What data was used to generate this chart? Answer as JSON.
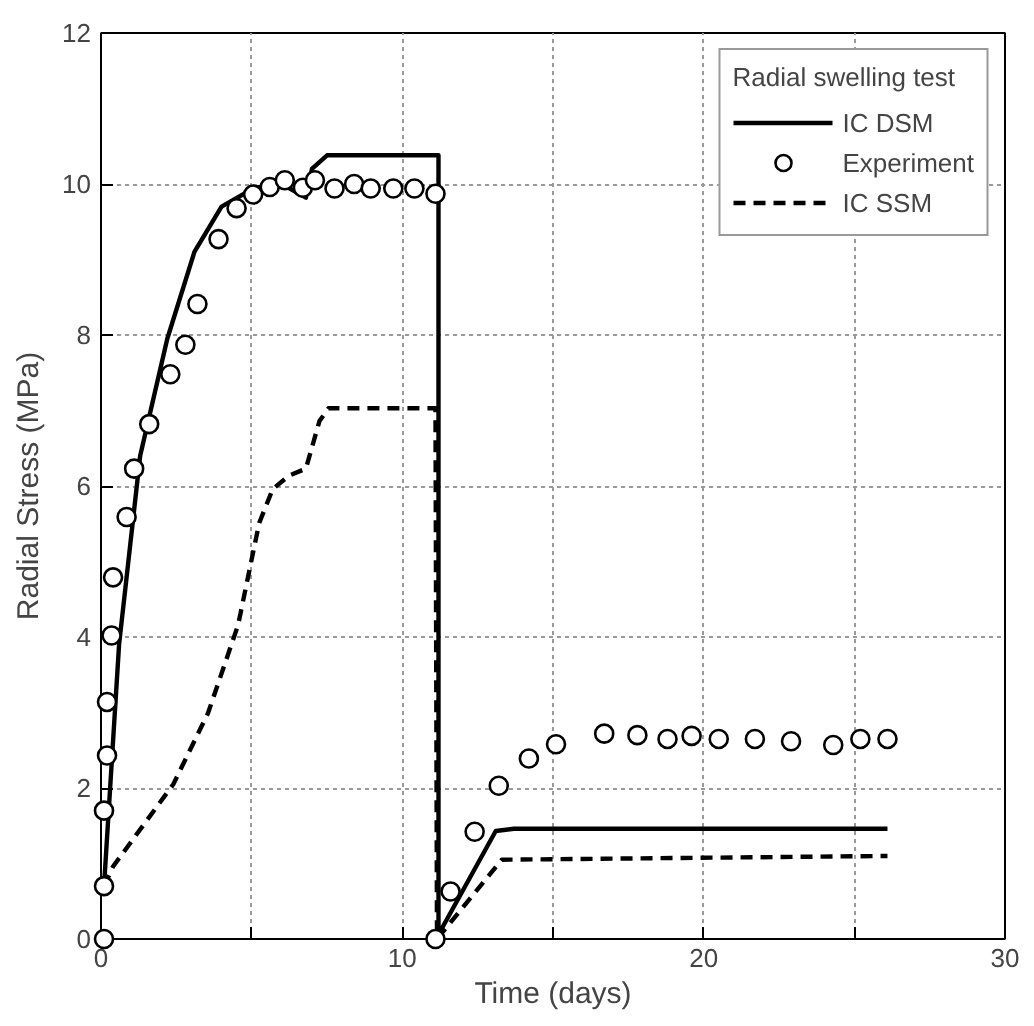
{
  "chart_data": {
    "type": "line",
    "xlabel": "Time (days)",
    "ylabel": "Radial Stress (MPa)",
    "legend_title": "Radial swelling test",
    "legend": "top right",
    "grid": true,
    "xlim": [
      0,
      30
    ],
    "ylim": [
      0,
      12
    ],
    "xticks": [
      0,
      {
        "value": 5,
        "label": null
      },
      10,
      {
        "value": 15,
        "label": null
      },
      20,
      {
        "value": 25,
        "label": null
      },
      30
    ],
    "yticks": [
      0,
      2,
      4,
      6,
      8,
      10,
      12
    ],
    "series": [
      {
        "name": "IC DSM",
        "line_style": "solid",
        "marker": "none",
        "color": "#000000",
        "x": [
          0.1,
          0.6,
          1.3,
          2.2,
          3.1,
          4.0,
          5.1,
          6.0,
          6.8,
          7.0,
          7.5,
          11.2,
          11.2,
          13.1,
          13.7,
          26.1
        ],
        "values": [
          0.7,
          3.9,
          6.4,
          7.95,
          9.1,
          9.7,
          9.95,
          10.0,
          9.82,
          10.2,
          10.38,
          10.38,
          0.06,
          1.43,
          1.46,
          1.46
        ]
      },
      {
        "name": "Experiment",
        "type": "scatter",
        "marker": "circle",
        "color": "#000000",
        "x": [
          0.1,
          0.1,
          0.1,
          0.2,
          0.2,
          0.35,
          0.4,
          0.85,
          1.1,
          1.6,
          2.3,
          2.8,
          3.2,
          3.9,
          4.5,
          5.05,
          5.6,
          6.1,
          6.7,
          7.1,
          7.75,
          8.4,
          8.95,
          9.7,
          10.4,
          11.1,
          11.1,
          11.6,
          12.4,
          13.2,
          14.2,
          15.1,
          16.7,
          17.8,
          18.8,
          19.6,
          20.5,
          21.7,
          22.9,
          24.3,
          25.2,
          26.1
        ],
        "values": [
          0,
          0.7,
          1.7,
          2.43,
          3.14,
          4.02,
          4.79,
          5.59,
          6.23,
          6.82,
          7.48,
          7.87,
          8.41,
          9.27,
          9.68,
          9.86,
          9.96,
          10.05,
          9.95,
          10.05,
          9.94,
          10.0,
          9.94,
          9.94,
          9.94,
          9.87,
          0,
          0.63,
          1.42,
          2.03,
          2.39,
          2.58,
          2.72,
          2.7,
          2.65,
          2.69,
          2.65,
          2.65,
          2.62,
          2.57,
          2.65,
          2.65
        ]
      },
      {
        "name": "IC SSM",
        "type": "line",
        "line_style": "dashed",
        "marker": "none",
        "color": "#000000",
        "x": [
          0.1,
          0.4,
          2.4,
          3.55,
          4.55,
          5.25,
          5.7,
          6.25,
          6.8,
          7.25,
          7.55,
          11.1,
          11.15,
          13.3,
          26.1
        ],
        "values": [
          0.7,
          0.96,
          2.05,
          2.99,
          4.16,
          5.51,
          5.96,
          6.14,
          6.23,
          6.86,
          7.03,
          7.03,
          0,
          1.05,
          1.1
        ]
      }
    ]
  }
}
